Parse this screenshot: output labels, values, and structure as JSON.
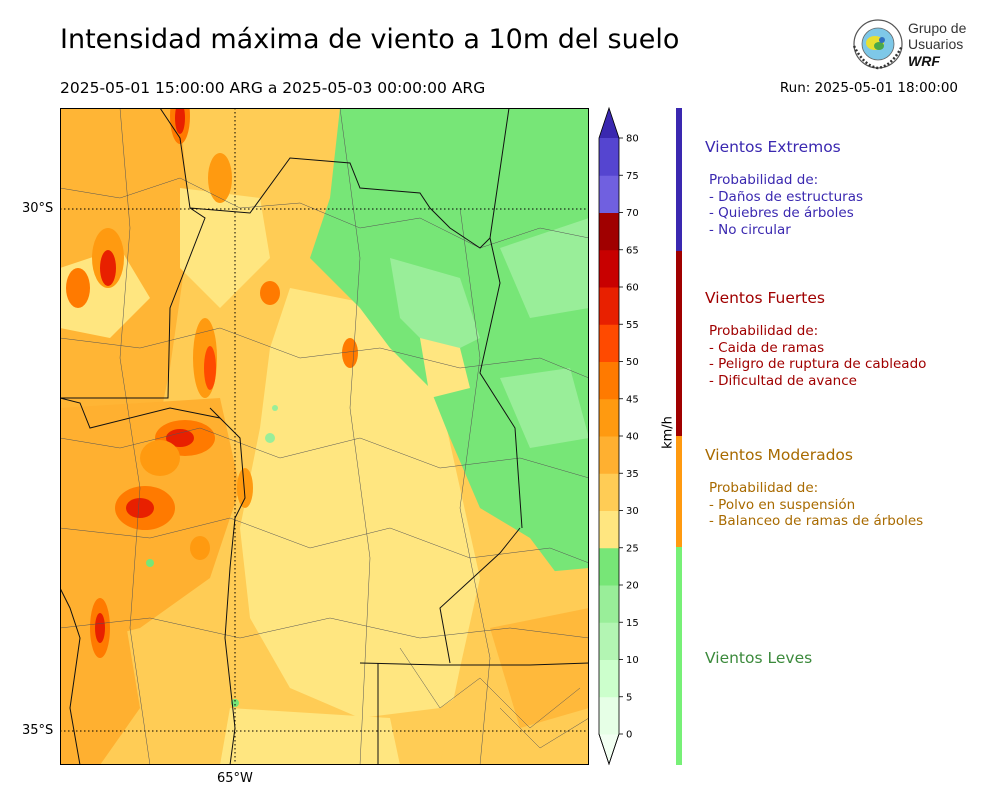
{
  "header": {
    "title": "Intensidad máxima de viento a 10m del suelo",
    "period": "2025-05-01 15:00:00 ARG  a  2025-05-03 00:00:00 ARG",
    "run": "Run: 2025-05-01 18:00:00"
  },
  "logo": {
    "line1": "Grupo de",
    "line2": "Usuarios",
    "line3": "WRF"
  },
  "axes": {
    "lat_labels": [
      {
        "text": "30°S"
      },
      {
        "text": "35°S"
      }
    ],
    "lon_labels": [
      {
        "text": "65°W"
      }
    ]
  },
  "colorbar": {
    "unit": "km/h",
    "ticks": [
      "0",
      "5",
      "10",
      "15",
      "20",
      "25",
      "30",
      "35",
      "40",
      "45",
      "50",
      "55",
      "60",
      "65",
      "70",
      "75",
      "80"
    ],
    "colors": [
      "#e6ffe6",
      "#ccffcc",
      "#b3f5b3",
      "#99ee99",
      "#77e677",
      "#ffe680",
      "#ffcc55",
      "#ffb030",
      "#ff9a10",
      "#ff7a00",
      "#ff4a00",
      "#e82000",
      "#c80000",
      "#a00000",
      "#7060e0",
      "#5545d0",
      "#4030c0"
    ],
    "over_color": "#3a28b0",
    "under_color": "#f2fff2"
  },
  "categories": [
    {
      "title": "Vientos Extremos",
      "desc": "Probabilidad de:\n- Daños de estructuras\n- Quiebres de árboles\n- No circular",
      "color": "#3a28b0"
    },
    {
      "title": "Vientos Fuertes",
      "desc": "Probabilidad de:\n- Caida de ramas\n- Peligro de ruptura de cableado\n- Dificultad de avance",
      "color": "#a00000"
    },
    {
      "title": "Vientos Moderados",
      "desc": "Probabilidad de:\n- Polvo en suspensión\n- Balanceo de ramas de árboles",
      "color": "#a86a00"
    },
    {
      "title": "Vientos Leves",
      "desc": "",
      "color": "#3c8a3c"
    }
  ],
  "category_bar_colors": [
    "#3a28b0",
    "#a00000",
    "#ff9a10",
    "#77f077"
  ]
}
